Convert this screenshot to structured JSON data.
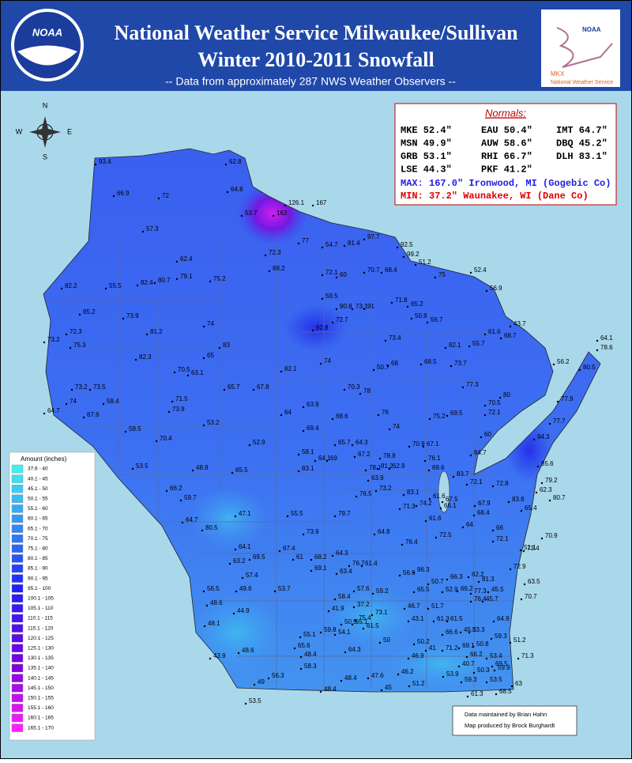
{
  "header": {
    "title": "National Weather Service Milwaukee/Sullivan",
    "subtitle": "Winter 2010-2011 Snowfall",
    "note": "-- Data from approximately 287 NWS Weather Observers --",
    "left_logo": "NOAA",
    "right_logo": {
      "agency": "NOAA",
      "office": "MKX",
      "service": "National Weather Service"
    }
  },
  "compass": {
    "n": "N",
    "e": "E",
    "s": "S",
    "w": "W"
  },
  "normals": {
    "title": "Normals:",
    "rows": [
      [
        "MKE 52.4\"",
        "EAU 50.4\"",
        "IMT 64.7\""
      ],
      [
        "MSN 49.9\"",
        "AUW 58.6\"",
        "DBQ 45.2\""
      ],
      [
        "GRB 53.1\"",
        "RHI 66.7\"",
        "DLH 83.1\""
      ],
      [
        "LSE 44.3\"",
        "PKF 41.2\""
      ]
    ],
    "max": "MAX: 167.0\" Ironwood, MI (Gogebic Co)",
    "min": "MIN: 37.2\" Waunakee, WI (Dane Co)"
  },
  "legend": {
    "title": "Amount (inches)",
    "labels": [
      "37.6 - 40",
      "40.1 - 45",
      "45.1 - 50",
      "50.1 - 55",
      "55.1 - 60",
      "60.1 - 65",
      "65.1 - 70",
      "70.1 - 75",
      "75.1 - 80",
      "80.1 - 85",
      "85.1 - 90",
      "90.1 - 95",
      "95.1 - 100",
      "100.1 - 105",
      "105.1 - 110",
      "110.1 - 115",
      "115.1 - 120",
      "120.1 - 125",
      "125.1 - 130",
      "130.1 - 135",
      "135.1 - 140",
      "140.1 - 145",
      "145.1 - 150",
      "150.1 - 155",
      "155.1 - 160",
      "160.1 - 165",
      "165.1 - 170"
    ]
  },
  "credits": [
    "Data maintained by Brian Hahn",
    "Map produced by Brock Burghardt"
  ],
  "station_values": [
    93.4,
    66.9,
    72,
    57.3,
    62.4,
    82.2,
    55.5,
    82.4,
    80.7,
    79.1,
    75.2,
    85.2,
    73.9,
    81.2,
    74,
    72.3,
    75.3,
    73.2,
    82.3,
    83,
    65,
    70.5,
    63.1,
    73.2,
    73.5,
    74,
    58.4,
    67.6,
    64.7,
    71.5,
    73.9,
    65.7,
    67.8,
    53.2,
    59.5,
    70.4,
    52.9,
    53.5,
    48.8,
    65.5,
    66.2,
    59.7,
    64.7,
    80.5,
    47.1,
    55.5,
    62.8,
    64.8,
    53.7,
    163,
    72.3,
    126.1,
    167,
    77,
    54.7,
    81.4,
    97.7,
    88.2,
    92.5,
    99.2,
    51.2,
    75,
    72.1,
    60,
    70.7,
    68.4,
    52.4,
    56.9,
    59.5,
    90.8,
    73.1,
    91,
    71.8,
    65.2,
    50.8,
    56.7,
    72.7,
    92.8,
    73.4,
    43.7,
    61.6,
    68.7,
    55.7,
    82.1,
    74,
    82.1,
    68,
    50.7,
    68.5,
    73.7,
    56.2,
    80.5,
    77.3,
    70.3,
    78,
    80,
    70.5,
    72.1,
    63.9,
    64,
    68.6,
    76,
    75.2,
    69.5,
    77.9,
    77.7,
    74,
    69.4,
    65.7,
    64.3,
    67.2,
    70.9,
    67.1,
    60,
    94.3,
    58.1,
    64.1,
    69,
    78.8,
    76.1,
    84.7,
    85.6,
    83.1,
    78.1,
    81.2,
    62.9,
    69.6,
    63.9,
    83.7,
    72.1,
    79.2,
    72.8,
    62.3,
    80.7,
    76.5,
    73.2,
    83.1,
    83.8,
    65.4,
    67.9,
    66.1,
    74.2,
    61.6,
    67.5,
    71.3,
    68.4,
    79.7,
    61.6,
    64,
    66,
    70.9,
    72.5,
    64.8,
    73.9,
    72.1,
    51.1,
    73.4,
    76.4,
    64.1,
    67.4,
    64.3,
    63.2,
    69.5,
    61,
    68.2,
    69.1,
    76.7,
    61.4,
    63.4,
    72.9,
    56.6,
    96.3,
    62.2,
    66.3,
    81.3,
    57.4,
    50.7,
    63.5,
    56.5,
    49.6,
    53.7,
    57.6,
    59.2,
    65.5,
    52.9,
    66.2,
    77.3,
    45.5,
    58.4,
    70.7,
    48.6,
    37.2,
    45.7,
    76.4,
    41.9,
    46.7,
    51.7,
    44.9,
    73.1,
    61.5,
    64.9,
    43.1,
    75.4,
    48.1,
    61.3,
    50.5,
    65.1,
    61.5,
    59.8,
    54.1,
    66.6,
    53.3,
    59.3,
    45.3,
    55.1,
    51.2,
    50,
    50.2,
    41,
    71.2,
    69.1,
    50.8,
    65.6,
    64.3,
    66.2,
    53.4,
    69.5,
    71.3,
    43.9,
    48.6,
    48.4,
    46.9,
    40.7,
    50.3,
    59.9,
    58.3,
    46.2,
    56.3,
    48.4,
    47.6,
    51.2,
    53.9,
    59.3,
    53.5,
    63,
    49,
    45,
    61.3,
    48.4,
    68.5,
    53.5,
    64.1,
    78.6
  ]
}
